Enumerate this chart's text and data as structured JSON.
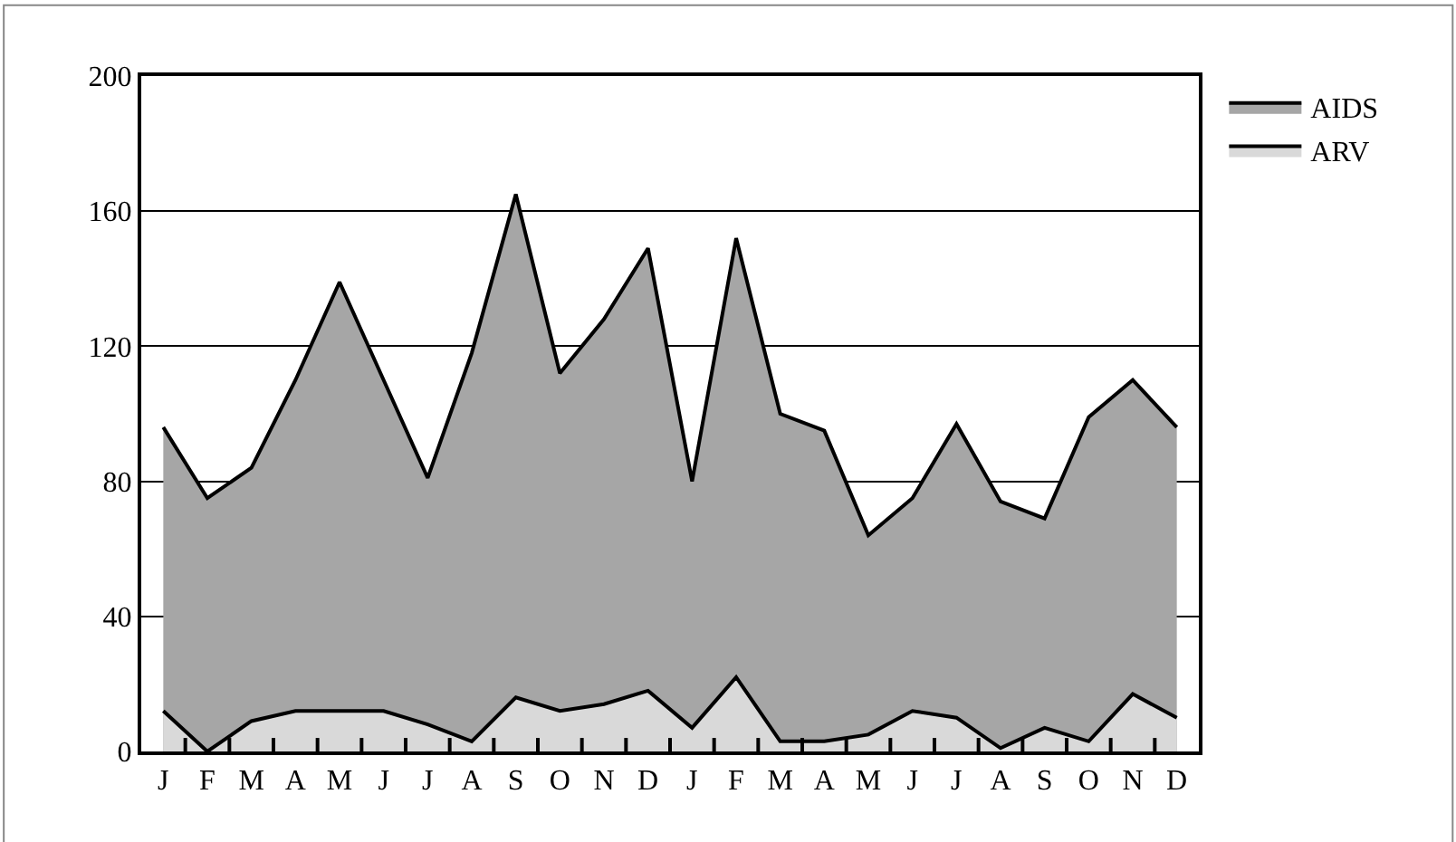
{
  "chart_data": {
    "type": "area",
    "categories": [
      "J",
      "F",
      "M",
      "A",
      "M",
      "J",
      "J",
      "A",
      "S",
      "O",
      "N",
      "D",
      "J",
      "F",
      "M",
      "A",
      "M",
      "J",
      "J",
      "A",
      "S",
      "O",
      "N",
      "D"
    ],
    "series": [
      {
        "name": "AIDS",
        "color": "#a6a6a6",
        "values": [
          96,
          75,
          84,
          110,
          139,
          110,
          81,
          118,
          165,
          112,
          128,
          149,
          80,
          152,
          100,
          95,
          64,
          75,
          97,
          74,
          69,
          99,
          110,
          96
        ]
      },
      {
        "name": "ARV",
        "color": "#d9d9d9",
        "values": [
          12,
          0,
          9,
          12,
          12,
          12,
          8,
          3,
          16,
          12,
          14,
          18,
          7,
          22,
          3,
          3,
          5,
          12,
          10,
          1,
          7,
          3,
          17,
          10
        ]
      }
    ],
    "ylim": [
      0,
      200
    ],
    "yticks": [
      0,
      40,
      80,
      120,
      160,
      200
    ],
    "grid": "y",
    "legend": "top right",
    "marker": "none",
    "line_style": "solid"
  }
}
